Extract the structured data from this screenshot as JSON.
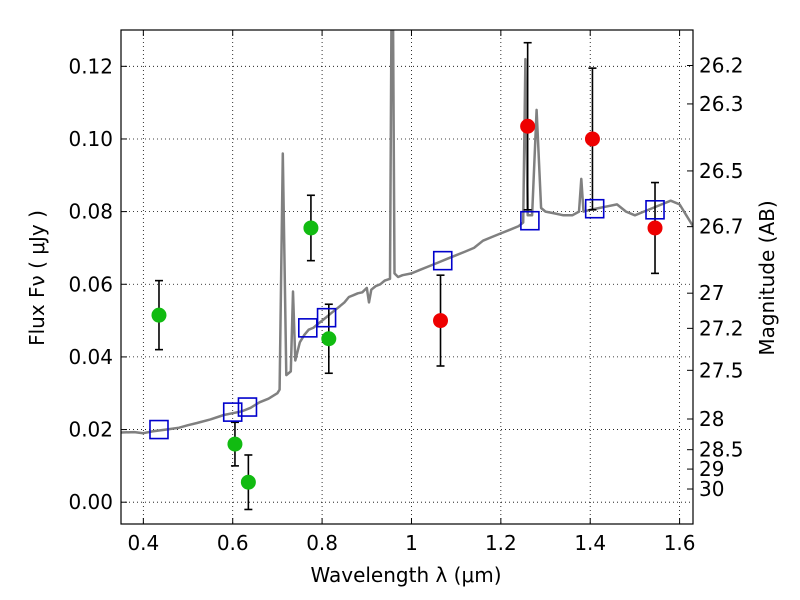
{
  "chart_data": {
    "type": "scatter",
    "xlabel": "Wavelength  λ (μm)",
    "ylabel": "Flux  Fν ( μJy )",
    "ylabel_right": "Magnitude (AB)",
    "xlim": [
      0.35,
      1.63
    ],
    "ylim": [
      -0.006,
      0.13
    ],
    "x_ticks": [
      {
        "value": 0.4,
        "label": "0.4"
      },
      {
        "value": 0.6,
        "label": "0.6"
      },
      {
        "value": 0.8,
        "label": "0.8"
      },
      {
        "value": 1.0,
        "label": "1"
      },
      {
        "value": 1.2,
        "label": "1.2"
      },
      {
        "value": 1.4,
        "label": "1.4"
      },
      {
        "value": 1.6,
        "label": "1.6"
      }
    ],
    "y_ticks": [
      {
        "value": 0.0,
        "label": "0.00"
      },
      {
        "value": 0.02,
        "label": "0.02"
      },
      {
        "value": 0.04,
        "label": "0.04"
      },
      {
        "value": 0.06,
        "label": "0.06"
      },
      {
        "value": 0.08,
        "label": "0.08"
      },
      {
        "value": 0.1,
        "label": "0.10"
      },
      {
        "value": 0.12,
        "label": "0.12"
      }
    ],
    "right_ticks": [
      {
        "mag": 26.2,
        "label": "26.2"
      },
      {
        "mag": 26.3,
        "label": "26.3"
      },
      {
        "mag": 26.5,
        "label": "26.5"
      },
      {
        "mag": 26.7,
        "label": "26.7"
      },
      {
        "mag": 27.0,
        "label": "27"
      },
      {
        "mag": 27.2,
        "label": "27.2"
      },
      {
        "mag": 27.5,
        "label": "27.5"
      },
      {
        "mag": 28.0,
        "label": "28"
      },
      {
        "mag": 28.5,
        "label": "28.5"
      },
      {
        "mag": 29.0,
        "label": "29"
      },
      {
        "mag": 30.0,
        "label": "30"
      }
    ],
    "grid": true,
    "colors": {
      "green": "#11bb11",
      "red": "#ee0000",
      "model_box": "#0000cc",
      "spectrum": "#808080"
    },
    "series": [
      {
        "color": "green",
        "points": [
          {
            "x": 0.435,
            "y": 0.0515,
            "err": 0.0095
          },
          {
            "x": 0.605,
            "y": 0.016,
            "err": 0.006
          },
          {
            "x": 0.635,
            "y": 0.0055,
            "err": 0.0075
          },
          {
            "x": 0.775,
            "y": 0.0755,
            "err": 0.009
          },
          {
            "x": 0.815,
            "y": 0.045,
            "err": 0.0095
          }
        ]
      },
      {
        "color": "red",
        "points": [
          {
            "x": 1.065,
            "y": 0.05,
            "err": 0.0125
          },
          {
            "x": 1.26,
            "y": 0.1035,
            "err": 0.023
          },
          {
            "x": 1.405,
            "y": 0.1,
            "err": 0.0195
          },
          {
            "x": 1.545,
            "y": 0.0755,
            "err": 0.0125
          }
        ]
      },
      {
        "color": "model_box",
        "points": [
          {
            "x": 0.435,
            "y": 0.02
          },
          {
            "x": 0.6,
            "y": 0.0248
          },
          {
            "x": 0.633,
            "y": 0.0262
          },
          {
            "x": 0.768,
            "y": 0.048
          },
          {
            "x": 0.81,
            "y": 0.0508
          },
          {
            "x": 1.07,
            "y": 0.0665
          },
          {
            "x": 1.265,
            "y": 0.0775
          },
          {
            "x": 1.41,
            "y": 0.0808
          },
          {
            "x": 1.545,
            "y": 0.0805
          }
        ]
      }
    ],
    "spectrum": [
      [
        0.35,
        0.0192
      ],
      [
        0.38,
        0.0193
      ],
      [
        0.4,
        0.019
      ],
      [
        0.42,
        0.0195
      ],
      [
        0.45,
        0.02
      ],
      [
        0.48,
        0.0205
      ],
      [
        0.5,
        0.0212
      ],
      [
        0.52,
        0.0218
      ],
      [
        0.55,
        0.0228
      ],
      [
        0.58,
        0.024
      ],
      [
        0.6,
        0.0245
      ],
      [
        0.62,
        0.025
      ],
      [
        0.64,
        0.026
      ],
      [
        0.66,
        0.0275
      ],
      [
        0.68,
        0.0285
      ],
      [
        0.7,
        0.03
      ],
      [
        0.705,
        0.031
      ],
      [
        0.712,
        0.096
      ],
      [
        0.72,
        0.035
      ],
      [
        0.73,
        0.036
      ],
      [
        0.735,
        0.058
      ],
      [
        0.74,
        0.039
      ],
      [
        0.75,
        0.044
      ],
      [
        0.76,
        0.046
      ],
      [
        0.77,
        0.0475
      ],
      [
        0.78,
        0.048
      ],
      [
        0.79,
        0.049
      ],
      [
        0.8,
        0.05
      ],
      [
        0.81,
        0.051
      ],
      [
        0.82,
        0.052
      ],
      [
        0.83,
        0.053
      ],
      [
        0.84,
        0.054
      ],
      [
        0.85,
        0.055
      ],
      [
        0.86,
        0.0565
      ],
      [
        0.87,
        0.057
      ],
      [
        0.88,
        0.0575
      ],
      [
        0.89,
        0.0578
      ],
      [
        0.9,
        0.059
      ],
      [
        0.905,
        0.055
      ],
      [
        0.91,
        0.0585
      ],
      [
        0.92,
        0.0595
      ],
      [
        0.93,
        0.06
      ],
      [
        0.94,
        0.061
      ],
      [
        0.952,
        0.0615
      ],
      [
        0.955,
        0.13
      ],
      [
        0.959,
        0.13
      ],
      [
        0.962,
        0.063
      ],
      [
        0.97,
        0.062
      ],
      [
        0.98,
        0.0625
      ],
      [
        1.0,
        0.063
      ],
      [
        1.02,
        0.064
      ],
      [
        1.04,
        0.065
      ],
      [
        1.06,
        0.066
      ],
      [
        1.08,
        0.067
      ],
      [
        1.1,
        0.068
      ],
      [
        1.12,
        0.069
      ],
      [
        1.14,
        0.07
      ],
      [
        1.16,
        0.072
      ],
      [
        1.18,
        0.073
      ],
      [
        1.2,
        0.074
      ],
      [
        1.22,
        0.075
      ],
      [
        1.24,
        0.076
      ],
      [
        1.25,
        0.077
      ],
      [
        1.255,
        0.122
      ],
      [
        1.26,
        0.079
      ],
      [
        1.27,
        0.079
      ],
      [
        1.28,
        0.108
      ],
      [
        1.29,
        0.081
      ],
      [
        1.3,
        0.08
      ],
      [
        1.32,
        0.0795
      ],
      [
        1.34,
        0.079
      ],
      [
        1.36,
        0.079
      ],
      [
        1.375,
        0.08
      ],
      [
        1.38,
        0.089
      ],
      [
        1.385,
        0.08
      ],
      [
        1.4,
        0.0805
      ],
      [
        1.42,
        0.081
      ],
      [
        1.44,
        0.0815
      ],
      [
        1.46,
        0.082
      ],
      [
        1.48,
        0.08
      ],
      [
        1.5,
        0.079
      ],
      [
        1.52,
        0.08
      ],
      [
        1.54,
        0.081
      ],
      [
        1.56,
        0.082
      ],
      [
        1.58,
        0.083
      ],
      [
        1.6,
        0.082
      ],
      [
        1.62,
        0.078
      ],
      [
        1.63,
        0.076
      ]
    ]
  }
}
